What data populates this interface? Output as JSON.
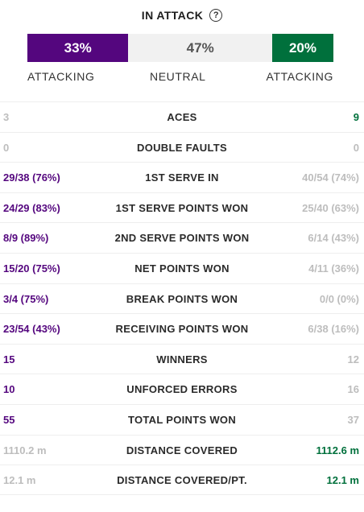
{
  "header": {
    "title": "IN ATTACK",
    "help_icon": "question-circle-icon",
    "help_glyph": "?"
  },
  "bar": {
    "left_pct": 33,
    "mid_pct": 47,
    "right_pct": 20,
    "left_label": "33%",
    "mid_label": "47%",
    "right_label": "20%",
    "left_color": "#54067e",
    "mid_color": "#f1f1f1",
    "right_color": "#00703c"
  },
  "bar_labels": {
    "left": "ATTACKING",
    "mid": "NEUTRAL",
    "right": "ATTACKING"
  },
  "colors": {
    "player1": "#54067e",
    "player2": "#00703c",
    "muted": "#bdbdbd"
  },
  "stats": [
    {
      "label": "ACES",
      "left": "3",
      "right": "9",
      "left_style": "grey",
      "right_style": "green"
    },
    {
      "label": "DOUBLE FAULTS",
      "left": "0",
      "right": "0",
      "left_style": "grey",
      "right_style": "grey"
    },
    {
      "label": "1ST SERVE IN",
      "left": "29/38 (76%)",
      "right": "40/54 (74%)",
      "left_style": "purple",
      "right_style": "grey"
    },
    {
      "label": "1ST SERVE POINTS WON",
      "left": "24/29 (83%)",
      "right": "25/40 (63%)",
      "left_style": "purple",
      "right_style": "grey"
    },
    {
      "label": "2ND SERVE POINTS WON",
      "left": "8/9 (89%)",
      "right": "6/14 (43%)",
      "left_style": "purple",
      "right_style": "grey"
    },
    {
      "label": "NET POINTS WON",
      "left": "15/20 (75%)",
      "right": "4/11 (36%)",
      "left_style": "purple",
      "right_style": "grey"
    },
    {
      "label": "BREAK POINTS WON",
      "left": "3/4 (75%)",
      "right": "0/0 (0%)",
      "left_style": "purple",
      "right_style": "grey"
    },
    {
      "label": "RECEIVING POINTS WON",
      "left": "23/54 (43%)",
      "right": "6/38 (16%)",
      "left_style": "purple",
      "right_style": "grey"
    },
    {
      "label": "WINNERS",
      "left": "15",
      "right": "12",
      "left_style": "purple",
      "right_style": "grey"
    },
    {
      "label": "UNFORCED ERRORS",
      "left": "10",
      "right": "16",
      "left_style": "purple",
      "right_style": "grey"
    },
    {
      "label": "TOTAL POINTS WON",
      "left": "55",
      "right": "37",
      "left_style": "purple",
      "right_style": "grey"
    },
    {
      "label": "DISTANCE COVERED",
      "left": "1110.2 m",
      "right": "1112.6 m",
      "left_style": "grey",
      "right_style": "green"
    },
    {
      "label": "DISTANCE COVERED/PT.",
      "left": "12.1 m",
      "right": "12.1 m",
      "left_style": "grey",
      "right_style": "green"
    }
  ]
}
